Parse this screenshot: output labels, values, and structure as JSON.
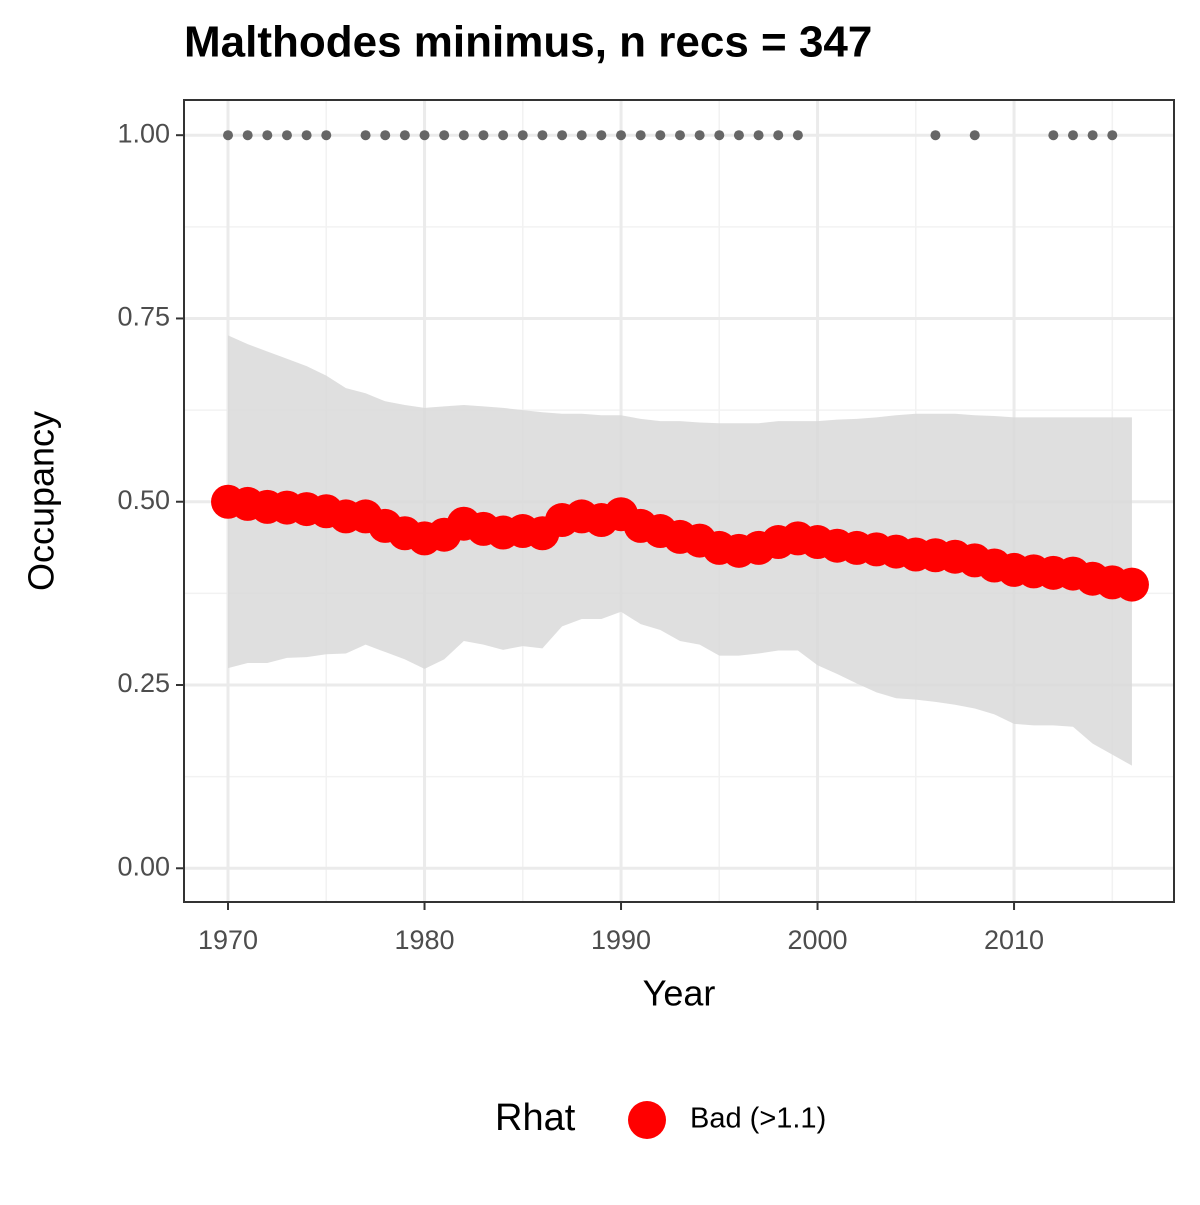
{
  "chart_data": {
    "type": "scatter",
    "title": "Malthodes minimus, n recs = 347",
    "x_label": "Year",
    "y_label": "Occupancy",
    "x": [
      1970,
      1971,
      1972,
      1973,
      1974,
      1975,
      1976,
      1977,
      1978,
      1979,
      1980,
      1981,
      1982,
      1983,
      1984,
      1985,
      1986,
      1987,
      1988,
      1989,
      1990,
      1991,
      1992,
      1993,
      1994,
      1995,
      1996,
      1997,
      1998,
      1999,
      2000,
      2001,
      2002,
      2003,
      2004,
      2005,
      2006,
      2007,
      2008,
      2009,
      2010,
      2011,
      2012,
      2013,
      2014,
      2015,
      2016
    ],
    "series": [
      {
        "name": "Bad (>1.1)",
        "color": "#ff0000",
        "values": [
          0.5,
          0.497,
          0.493,
          0.492,
          0.49,
          0.487,
          0.48,
          0.48,
          0.467,
          0.457,
          0.45,
          0.455,
          0.47,
          0.463,
          0.458,
          0.46,
          0.457,
          0.475,
          0.48,
          0.475,
          0.483,
          0.467,
          0.46,
          0.452,
          0.447,
          0.437,
          0.433,
          0.437,
          0.445,
          0.45,
          0.445,
          0.44,
          0.437,
          0.435,
          0.432,
          0.428,
          0.427,
          0.425,
          0.42,
          0.413,
          0.407,
          0.405,
          0.403,
          0.402,
          0.395,
          0.39,
          0.387
        ]
      }
    ],
    "band": {
      "color": "#d9d9d9",
      "upper": [
        0.727,
        0.715,
        0.705,
        0.695,
        0.685,
        0.672,
        0.655,
        0.648,
        0.637,
        0.632,
        0.628,
        0.63,
        0.632,
        0.63,
        0.628,
        0.625,
        0.622,
        0.62,
        0.62,
        0.618,
        0.618,
        0.613,
        0.61,
        0.61,
        0.608,
        0.607,
        0.607,
        0.607,
        0.61,
        0.61,
        0.61,
        0.612,
        0.613,
        0.615,
        0.618,
        0.62,
        0.62,
        0.62,
        0.618,
        0.617,
        0.615,
        0.615,
        0.615,
        0.615,
        0.615,
        0.615,
        0.615
      ],
      "lower": [
        0.273,
        0.28,
        0.28,
        0.287,
        0.288,
        0.292,
        0.293,
        0.305,
        0.295,
        0.285,
        0.272,
        0.285,
        0.31,
        0.305,
        0.298,
        0.303,
        0.3,
        0.33,
        0.34,
        0.34,
        0.35,
        0.333,
        0.325,
        0.31,
        0.305,
        0.29,
        0.29,
        0.293,
        0.297,
        0.297,
        0.277,
        0.265,
        0.252,
        0.24,
        0.232,
        0.23,
        0.227,
        0.223,
        0.218,
        0.21,
        0.197,
        0.195,
        0.195,
        0.193,
        0.17,
        0.155,
        0.14
      ]
    },
    "records": {
      "color": "#666666",
      "x": [
        1970,
        1971,
        1972,
        1973,
        1974,
        1975,
        1977,
        1978,
        1979,
        1980,
        1981,
        1982,
        1983,
        1984,
        1985,
        1986,
        1987,
        1988,
        1989,
        1990,
        1991,
        1992,
        1993,
        1994,
        1995,
        1996,
        1997,
        1998,
        1999,
        2006,
        2008,
        2012,
        2013,
        2014,
        2015
      ],
      "values": [
        1,
        1,
        1,
        1,
        1,
        1,
        1,
        1,
        1,
        1,
        1,
        1,
        1,
        1,
        1,
        1,
        1,
        1,
        1,
        1,
        1,
        1,
        1,
        1,
        1,
        1,
        1,
        1,
        1,
        1,
        1,
        1,
        1,
        1,
        1
      ]
    },
    "xlim": [
      1967.76,
      2018.14
    ],
    "ylim": [
      -0.046,
      1.048
    ],
    "xticks": [
      1970,
      1980,
      1990,
      2000,
      2010
    ],
    "yticks": [
      {
        "value": 0,
        "label": "0.00"
      },
      {
        "value": 0.25,
        "label": "0.25"
      },
      {
        "value": 0.5,
        "label": "0.50"
      },
      {
        "value": 0.75,
        "label": "0.75"
      },
      {
        "value": 1,
        "label": "1.00"
      }
    ],
    "grid": true,
    "legend_title": "Rhat",
    "legend_position": "bottom"
  }
}
